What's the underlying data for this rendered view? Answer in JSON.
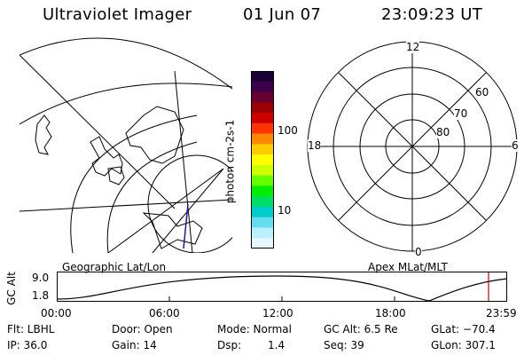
{
  "header": {
    "instrument": "Ultraviolet Imager",
    "date": "01 Jun 07",
    "time": "23:09:23 UT"
  },
  "colorbar": {
    "unit_label": "photon cm-2s-1",
    "tick_labels": [
      "100",
      "10"
    ],
    "colors": [
      "#1a0033",
      "#3d004d",
      "#660033",
      "#990000",
      "#cc0000",
      "#ff3300",
      "#ff8800",
      "#ffcc00",
      "#ffff00",
      "#ccff00",
      "#66ff00",
      "#00ee00",
      "#00dd66",
      "#00cccc",
      "#66ddee",
      "#bbeeff",
      "#e6f7ff"
    ]
  },
  "left_panel": {
    "label": "Geographic Lat/Lon"
  },
  "right_panel": {
    "label": "Apex MLat/MLT",
    "mlt_labels": {
      "top": "12",
      "right": "6",
      "bottom": "0",
      "left": "18"
    },
    "lat_labels": [
      "60",
      "70",
      "80"
    ]
  },
  "altitude_plot": {
    "ylabel": "GC Alt",
    "y_ticks": [
      "9.0",
      "1.8"
    ],
    "x_ticks": [
      "00:00",
      "06:00",
      "12:00",
      "18:00",
      "23:59"
    ],
    "marker_color": "#cc0000"
  },
  "status": {
    "flt": "Flt: LBHL",
    "door": "Door: Open",
    "mode": "Mode: Normal",
    "gcalt": "GC Alt: 6.5 Re",
    "glat": "GLat: −70.4",
    "ip": "IP: 36.0",
    "gain": "Gain: 14",
    "dsp_label": "Dsp:",
    "dsp_value": "1.4",
    "seq": "Seq: 39",
    "glon": "GLon: 307.1"
  }
}
